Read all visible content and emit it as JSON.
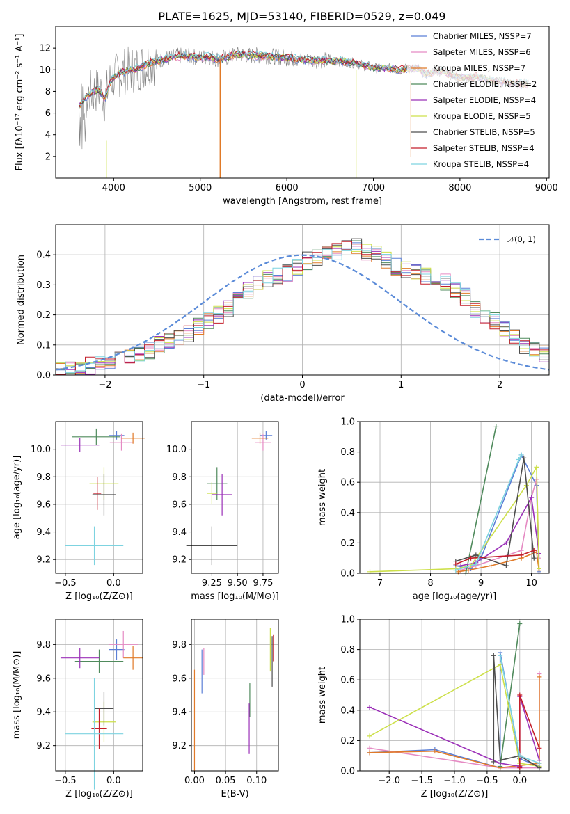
{
  "figure": {
    "title": "PLATE=1625, MJD=53140, FIBERID=0529, z=0.049"
  },
  "colors": {
    "chabrier_miles": "#5b7fd6",
    "salpeter_miles": "#e58ac3",
    "kroupa_miles": "#e07a28",
    "chabrier_elodie": "#4f8a5c",
    "salpeter_elodie": "#9b30b8",
    "kroupa_elodie": "#cde04a",
    "chabrier_stelib": "#4d4d4d",
    "salpeter_stelib": "#c41e2a",
    "kroupa_stelib": "#7dd3e0",
    "data": "#808080",
    "gaussian": "#5b8bd8"
  },
  "chart_data": [
    {
      "id": "spectrum",
      "type": "line",
      "xlabel": "wavelength [Angstrom, rest frame]",
      "ylabel": "Flux [fλ10⁻¹⁷ erg cm⁻² s⁻¹ A⁻¹]",
      "xlim": [
        3330,
        9030
      ],
      "ylim": [
        0,
        14
      ],
      "xticks": [
        "4000",
        "5000",
        "6000",
        "7000",
        "8000",
        "9000"
      ],
      "yticks": [
        "2",
        "4",
        "6",
        "8",
        "10",
        "12"
      ],
      "grid": false,
      "legend_position": "right",
      "legend": [
        "Chabrier MILES, NSSP=7",
        "Salpeter MILES, NSSP=6",
        "Kroupa MILES, NSSP=7",
        "Chabrier ELODIE, NSSP=2",
        "Salpeter ELODIE, NSSP=4",
        "Kroupa ELODIE, NSSP=5",
        "Chabrier STELIB, NSSP=5",
        "Salpeter STELIB, NSSP=4",
        "Kroupa STELIB, NSSP=4"
      ],
      "continuum_x": [
        3600,
        3650,
        3700,
        3750,
        3800,
        3850,
        3900,
        3950,
        4000,
        4100,
        4200,
        4300,
        4400,
        4500,
        4600,
        4700,
        4800,
        4900,
        5000,
        5100,
        5200,
        5300,
        5400,
        5500,
        5600,
        5700,
        5800,
        5900,
        6000,
        6100,
        6200,
        6300,
        6400,
        6500,
        6600,
        6700,
        6800,
        6900,
        7000,
        7100,
        7200,
        7300,
        7400,
        7500,
        7600,
        7700,
        7800,
        7900,
        8000,
        8100,
        8200,
        8300,
        8400,
        8500,
        8600,
        8700,
        8800
      ],
      "continuum_y": [
        6.6,
        7.3,
        7.6,
        7.9,
        8.1,
        8.0,
        7.2,
        8.8,
        9.3,
        9.8,
        10.0,
        10.2,
        10.6,
        10.8,
        11.0,
        11.2,
        11.3,
        11.2,
        11.1,
        11.2,
        11.0,
        11.1,
        11.4,
        11.4,
        11.3,
        11.3,
        11.2,
        11.2,
        11.1,
        11.0,
        10.9,
        10.9,
        10.9,
        10.8,
        10.8,
        10.7,
        10.6,
        10.4,
        10.2,
        10.1,
        10.1,
        10.0,
        10.1,
        10.2,
        9.6,
        9.8,
        9.9,
        9.5,
        9.3,
        9.2,
        9.4,
        9.1,
        8.9,
        8.9,
        8.8,
        8.7,
        8.7
      ]
    },
    {
      "id": "residuals",
      "type": "line",
      "xlabel": "(data-model)/error",
      "ylabel": "Normed distribution",
      "xlim": [
        -2.5,
        2.5
      ],
      "ylim": [
        0,
        0.5
      ],
      "xticks": [
        "−2",
        "−1",
        "0",
        "1",
        "2"
      ],
      "yticks": [
        "0.0",
        "0.1",
        "0.2",
        "0.3",
        "0.4"
      ],
      "grid": true,
      "legend_position": "top-right",
      "legend": [
        "𝒩(0, 1)"
      ],
      "bin_width": 0.1,
      "bins_start": -2.5,
      "hist_values": [
        0.02,
        0.02,
        0.02,
        0.03,
        0.04,
        0.05,
        0.06,
        0.06,
        0.07,
        0.08,
        0.1,
        0.11,
        0.12,
        0.14,
        0.16,
        0.18,
        0.2,
        0.22,
        0.26,
        0.28,
        0.31,
        0.32,
        0.33,
        0.34,
        0.36,
        0.38,
        0.39,
        0.4,
        0.41,
        0.42,
        0.43,
        0.41,
        0.4,
        0.38,
        0.36,
        0.35,
        0.34,
        0.33,
        0.32,
        0.31,
        0.28,
        0.26,
        0.22,
        0.2,
        0.18,
        0.15,
        0.13,
        0.1,
        0.09,
        0.07,
        0.06
      ]
    },
    {
      "id": "z-age",
      "type": "scatter",
      "xlabel": "Z [log₁₀(Z/Z⊙)]",
      "ylabel": "age  [log₁₀(age/yr)]",
      "xlim": [
        -0.6,
        0.3
      ],
      "ylim": [
        9.1,
        10.2
      ],
      "xticks": [
        "−0.5",
        "0.0"
      ],
      "yticks": [
        "9.2",
        "9.4",
        "9.6",
        "9.8",
        "10.0"
      ],
      "points": [
        {
          "x": 0.03,
          "y": 10.1,
          "xerr": 0.08,
          "yerr": 0.03
        },
        {
          "x": 0.08,
          "y": 10.05,
          "xerr": 0.12,
          "yerr": 0.06
        },
        {
          "x": 0.2,
          "y": 10.08,
          "xerr": 0.12,
          "yerr": 0.04
        },
        {
          "x": -0.18,
          "y": 10.09,
          "xerr": 0.25,
          "yerr": 0.06
        },
        {
          "x": -0.35,
          "y": 10.03,
          "xerr": 0.2,
          "yerr": 0.05
        },
        {
          "x": -0.1,
          "y": 9.75,
          "xerr": 0.15,
          "yerr": 0.12
        },
        {
          "x": -0.1,
          "y": 9.67,
          "xerr": 0.12,
          "yerr": 0.15
        },
        {
          "x": -0.17,
          "y": 9.68,
          "xerr": 0.04,
          "yerr": 0.12
        },
        {
          "x": -0.2,
          "y": 9.3,
          "xerr": 0.3,
          "yerr": 0.14
        }
      ]
    },
    {
      "id": "mass-age",
      "type": "scatter",
      "xlabel": "mass [log₁₀(M/M⊙)]",
      "ylabel": "",
      "xlim": [
        9.05,
        9.9
      ],
      "ylim": [
        9.1,
        10.2
      ],
      "xticks": [
        "9.25",
        "9.50",
        "9.75"
      ],
      "yticks": [
        "9.2",
        "9.4",
        "9.6",
        "9.8",
        "10.0"
      ],
      "points": [
        {
          "x": 9.78,
          "y": 10.1,
          "xerr": 0.06,
          "yerr": 0.03
        },
        {
          "x": 9.75,
          "y": 10.05,
          "xerr": 0.08,
          "yerr": 0.06
        },
        {
          "x": 9.72,
          "y": 10.08,
          "xerr": 0.08,
          "yerr": 0.04
        },
        {
          "x": 9.3,
          "y": 9.75,
          "xerr": 0.1,
          "yerr": 0.12
        },
        {
          "x": 9.35,
          "y": 9.67,
          "xerr": 0.1,
          "yerr": 0.15
        },
        {
          "x": 9.25,
          "y": 9.68,
          "xerr": 0.05,
          "yerr": 0.08
        },
        {
          "x": 9.25,
          "y": 9.3,
          "xerr": 0.25,
          "yerr": 0.14
        }
      ]
    },
    {
      "id": "age-massweight",
      "type": "line",
      "xlabel": "age  [log₁₀(age/yr)]",
      "ylabel": "mass weight",
      "xlim": [
        6.6,
        10.35
      ],
      "ylim": [
        0,
        1
      ],
      "xticks": [
        "7",
        "8",
        "9",
        "10"
      ],
      "yticks": [
        "0.0",
        "0.2",
        "0.4",
        "0.6",
        "0.8",
        "1.0"
      ],
      "series": [
        {
          "x": [
            8.5,
            8.8,
            9.0,
            9.8,
            10.1,
            10.15
          ],
          "y": [
            0.05,
            0.03,
            0.1,
            0.78,
            0.58,
            0.01
          ]
        },
        {
          "x": [
            8.6,
            8.9,
            9.8,
            10.0,
            10.1,
            10.15
          ],
          "y": [
            0.02,
            0.05,
            0.15,
            0.5,
            0.62,
            0.1
          ]
        },
        {
          "x": [
            8.55,
            8.75,
            9.2,
            9.8,
            10.1,
            10.15
          ],
          "y": [
            0.01,
            0.02,
            0.05,
            0.1,
            0.14,
            0.02
          ]
        },
        {
          "x": [
            8.7,
            9.3
          ],
          "y": [
            0.0,
            0.97
          ]
        },
        {
          "x": [
            8.6,
            8.9,
            9.5,
            10.0,
            10.15
          ],
          "y": [
            0.05,
            0.07,
            0.2,
            0.5,
            0.13
          ]
        },
        {
          "x": [
            6.8,
            8.5,
            8.8,
            9.9,
            10.1,
            10.15
          ],
          "y": [
            0.01,
            0.03,
            0.05,
            0.58,
            0.7,
            0.03
          ]
        },
        {
          "x": [
            8.5,
            8.9,
            9.5,
            9.85,
            10.05
          ],
          "y": [
            0.08,
            0.12,
            0.05,
            0.76,
            0.1
          ]
        },
        {
          "x": [
            8.5,
            8.8,
            9.8,
            10.05
          ],
          "y": [
            0.06,
            0.1,
            0.12,
            0.15
          ]
        },
        {
          "x": [
            8.5,
            8.9,
            9.75,
            9.8
          ],
          "y": [
            0.02,
            0.06,
            0.75,
            0.78
          ]
        }
      ]
    },
    {
      "id": "z-mass",
      "type": "scatter",
      "xlabel": "Z [log₁₀(Z/Z⊙)]",
      "ylabel": "mass [log₁₀(M/M⊙)]",
      "xlim": [
        -0.6,
        0.3
      ],
      "ylim": [
        9.05,
        9.95
      ],
      "xticks": [
        "−0.5",
        "0.0"
      ],
      "yticks": [
        "9.2",
        "9.4",
        "9.6",
        "9.8"
      ],
      "points": [
        {
          "x": 0.03,
          "y": 9.77,
          "xerr": 0.08,
          "yerr": 0.06
        },
        {
          "x": 0.1,
          "y": 9.8,
          "xerr": 0.15,
          "yerr": 0.08
        },
        {
          "x": 0.2,
          "y": 9.72,
          "xerr": 0.1,
          "yerr": 0.07
        },
        {
          "x": -0.15,
          "y": 9.7,
          "xerr": 0.25,
          "yerr": 0.07
        },
        {
          "x": -0.35,
          "y": 9.72,
          "xerr": 0.2,
          "yerr": 0.06
        },
        {
          "x": -0.1,
          "y": 9.34,
          "xerr": 0.12,
          "yerr": 0.12
        },
        {
          "x": -0.1,
          "y": 9.42,
          "xerr": 0.1,
          "yerr": 0.1
        },
        {
          "x": -0.15,
          "y": 9.3,
          "xerr": 0.08,
          "yerr": 0.12
        },
        {
          "x": -0.2,
          "y": 9.27,
          "xerr": 0.3,
          "yerr": 0.33
        }
      ]
    },
    {
      "id": "ebv-mass",
      "type": "scatter",
      "xlabel": "E(B-V)",
      "ylabel": "",
      "xlim": [
        -0.005,
        0.135
      ],
      "ylim": [
        9.05,
        9.95
      ],
      "xticks": [
        "0.00",
        "0.05",
        "0.10"
      ],
      "yticks": [
        "9.2",
        "9.4",
        "9.6",
        "9.8"
      ],
      "points": [
        {
          "x": 0.012,
          "y": 9.64,
          "yerr": 0.13
        },
        {
          "x": 0.015,
          "y": 9.7,
          "yerr": 0.08
        },
        {
          "x": 0.0,
          "y": 9.35,
          "yerr": 0.3
        },
        {
          "x": 0.089,
          "y": 9.47,
          "yerr": 0.1
        },
        {
          "x": 0.088,
          "y": 9.3,
          "yerr": 0.15
        },
        {
          "x": 0.122,
          "y": 9.77,
          "yerr": 0.13
        },
        {
          "x": 0.125,
          "y": 9.7,
          "yerr": 0.15
        },
        {
          "x": 0.127,
          "y": 9.78,
          "yerr": 0.08
        }
      ]
    },
    {
      "id": "z-massweight",
      "type": "line",
      "xlabel": "Z [log₁₀(Z/Z⊙)]",
      "ylabel": "mass weight",
      "xlim": [
        -2.45,
        0.45
      ],
      "ylim": [
        0,
        1
      ],
      "xticks": [
        "−2.0",
        "−1.5",
        "−1.0",
        "−0.5",
        "0.0"
      ],
      "yticks": [
        "0.0",
        "0.2",
        "0.4",
        "0.6",
        "0.8",
        "1.0"
      ],
      "series": [
        {
          "x": [
            -2.3,
            -1.3,
            -0.3,
            -0.3,
            0.0,
            0.3
          ],
          "y": [
            0.12,
            0.14,
            0.02,
            0.78,
            0.08,
            0.03
          ]
        },
        {
          "x": [
            -2.3,
            -0.3,
            0.0,
            0.3,
            0.3
          ],
          "y": [
            0.15,
            0.02,
            0.02,
            0.02,
            0.64
          ]
        },
        {
          "x": [
            -2.3,
            -1.3,
            -0.3,
            0.3,
            0.3
          ],
          "y": [
            0.12,
            0.13,
            0.02,
            0.05,
            0.62
          ]
        },
        {
          "x": [
            -0.3,
            0.0
          ],
          "y": [
            0.03,
            0.97
          ]
        },
        {
          "x": [
            -2.3,
            -0.3,
            0.0,
            0.0,
            0.3
          ],
          "y": [
            0.42,
            0.05,
            0.03,
            0.49,
            0.07
          ]
        },
        {
          "x": [
            -2.3,
            -0.3,
            0.0,
            0.3
          ],
          "y": [
            0.23,
            0.7,
            0.05,
            0.03
          ]
        },
        {
          "x": [
            -0.4,
            -0.4,
            -0.3,
            0.0,
            0.3
          ],
          "y": [
            0.06,
            0.76,
            0.07,
            0.1,
            0.02
          ]
        },
        {
          "x": [
            0.0,
            0.0,
            0.3
          ],
          "y": [
            0.02,
            0.5,
            0.15
          ]
        },
        {
          "x": [
            -0.3,
            0.0,
            0.3
          ],
          "y": [
            0.76,
            0.1,
            0.05
          ]
        }
      ]
    }
  ]
}
